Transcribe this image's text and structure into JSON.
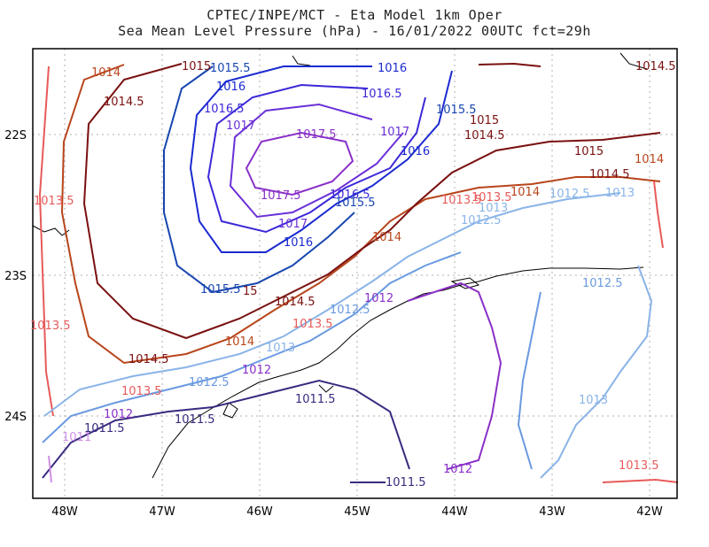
{
  "title_line1": "CPTEC/INPE/MCT -  Eta Model 1km Oper",
  "title_line2": "Sea Mean Level Pressure (hPa) - 16/01/2022 00UTC fct=29h",
  "x_ticks": [
    "48W",
    "47W",
    "46W",
    "45W",
    "44W",
    "43W",
    "42W"
  ],
  "y_ticks": [
    "22S",
    "23S",
    "24S"
  ],
  "contour_labels": [
    {
      "text": "1014",
      "color": "#b8451b"
    },
    {
      "text": "1015",
      "color": "#7a1010"
    },
    {
      "text": "1015.5",
      "color": "#1846b0"
    },
    {
      "text": "1016",
      "color": "#1a2ad0"
    },
    {
      "text": "1014.5",
      "color": "#7a1010"
    },
    {
      "text": "1016.5",
      "color": "#3b28d8"
    },
    {
      "text": "1016",
      "color": "#1a2ad0"
    },
    {
      "text": "1016.5",
      "color": "#3b28d8"
    },
    {
      "text": "1015.5",
      "color": "#1846b0"
    },
    {
      "text": "1017",
      "color": "#6a30d8"
    },
    {
      "text": "1017.5",
      "color": "#8a30c8"
    },
    {
      "text": "1017",
      "color": "#6a30d8"
    },
    {
      "text": "1015",
      "color": "#7a1010"
    },
    {
      "text": "1014.5",
      "color": "#7a1010"
    },
    {
      "text": "1016",
      "color": "#1a2ad0"
    },
    {
      "text": "1015",
      "color": "#7a1010"
    },
    {
      "text": "1014.5",
      "color": "#7a1010"
    },
    {
      "text": "1014",
      "color": "#b8451b"
    },
    {
      "text": "1014.5",
      "color": "#7a1010"
    },
    {
      "text": "1014",
      "color": "#b8451b"
    },
    {
      "text": "1013.5",
      "color": "#e85a5a"
    },
    {
      "text": "1013",
      "color": "#8ab4e8"
    },
    {
      "text": "1012.5",
      "color": "#8ab4e8"
    },
    {
      "text": "1013",
      "color": "#8ab4e8"
    },
    {
      "text": "1013.5",
      "color": "#e85a5a"
    },
    {
      "text": "1017.5",
      "color": "#8a30c8"
    },
    {
      "text": "1016.5",
      "color": "#3b28d8"
    },
    {
      "text": "1015.5",
      "color": "#1846b0"
    },
    {
      "text": "1017",
      "color": "#6a30d8"
    },
    {
      "text": "1016",
      "color": "#1a2ad0"
    },
    {
      "text": "1014",
      "color": "#b8451b"
    },
    {
      "text": "1012.5",
      "color": "#8ab4e8"
    },
    {
      "text": "1015.5",
      "color": "#1846b0"
    },
    {
      "text": "15",
      "color": "#7a1010"
    },
    {
      "text": "1014.5",
      "color": "#7a1010"
    },
    {
      "text": "1012.5",
      "color": "#6a9ae0"
    },
    {
      "text": "1012",
      "color": "#8a30c8"
    },
    {
      "text": "1013.5",
      "color": "#e85a5a"
    },
    {
      "text": "1012.5",
      "color": "#6a9ae0"
    },
    {
      "text": "1013.5",
      "color": "#e85a5a"
    },
    {
      "text": "1014",
      "color": "#b8451b"
    },
    {
      "text": "1013",
      "color": "#8ab4e8"
    },
    {
      "text": "1014.5",
      "color": "#7a1010"
    },
    {
      "text": "1012",
      "color": "#8a30c8"
    },
    {
      "text": "1013.5",
      "color": "#e85a5a"
    },
    {
      "text": "1012.5",
      "color": "#6a9ae0"
    },
    {
      "text": "1011.5",
      "color": "#3a2a80"
    },
    {
      "text": "1012",
      "color": "#8a30c8"
    },
    {
      "text": "1011.5",
      "color": "#3a2a80"
    },
    {
      "text": "1011.5",
      "color": "#3a2a80"
    },
    {
      "text": "1012",
      "color": "#8a30c8"
    },
    {
      "text": "1011",
      "color": "#d090e8"
    },
    {
      "text": "1013",
      "color": "#8ab4e8"
    },
    {
      "text": "1013.5",
      "color": "#e85a5a"
    },
    {
      "text": "1011.5",
      "color": "#3a2a80"
    },
    {
      "text": "1013.5",
      "color": "#e85a5a"
    }
  ]
}
